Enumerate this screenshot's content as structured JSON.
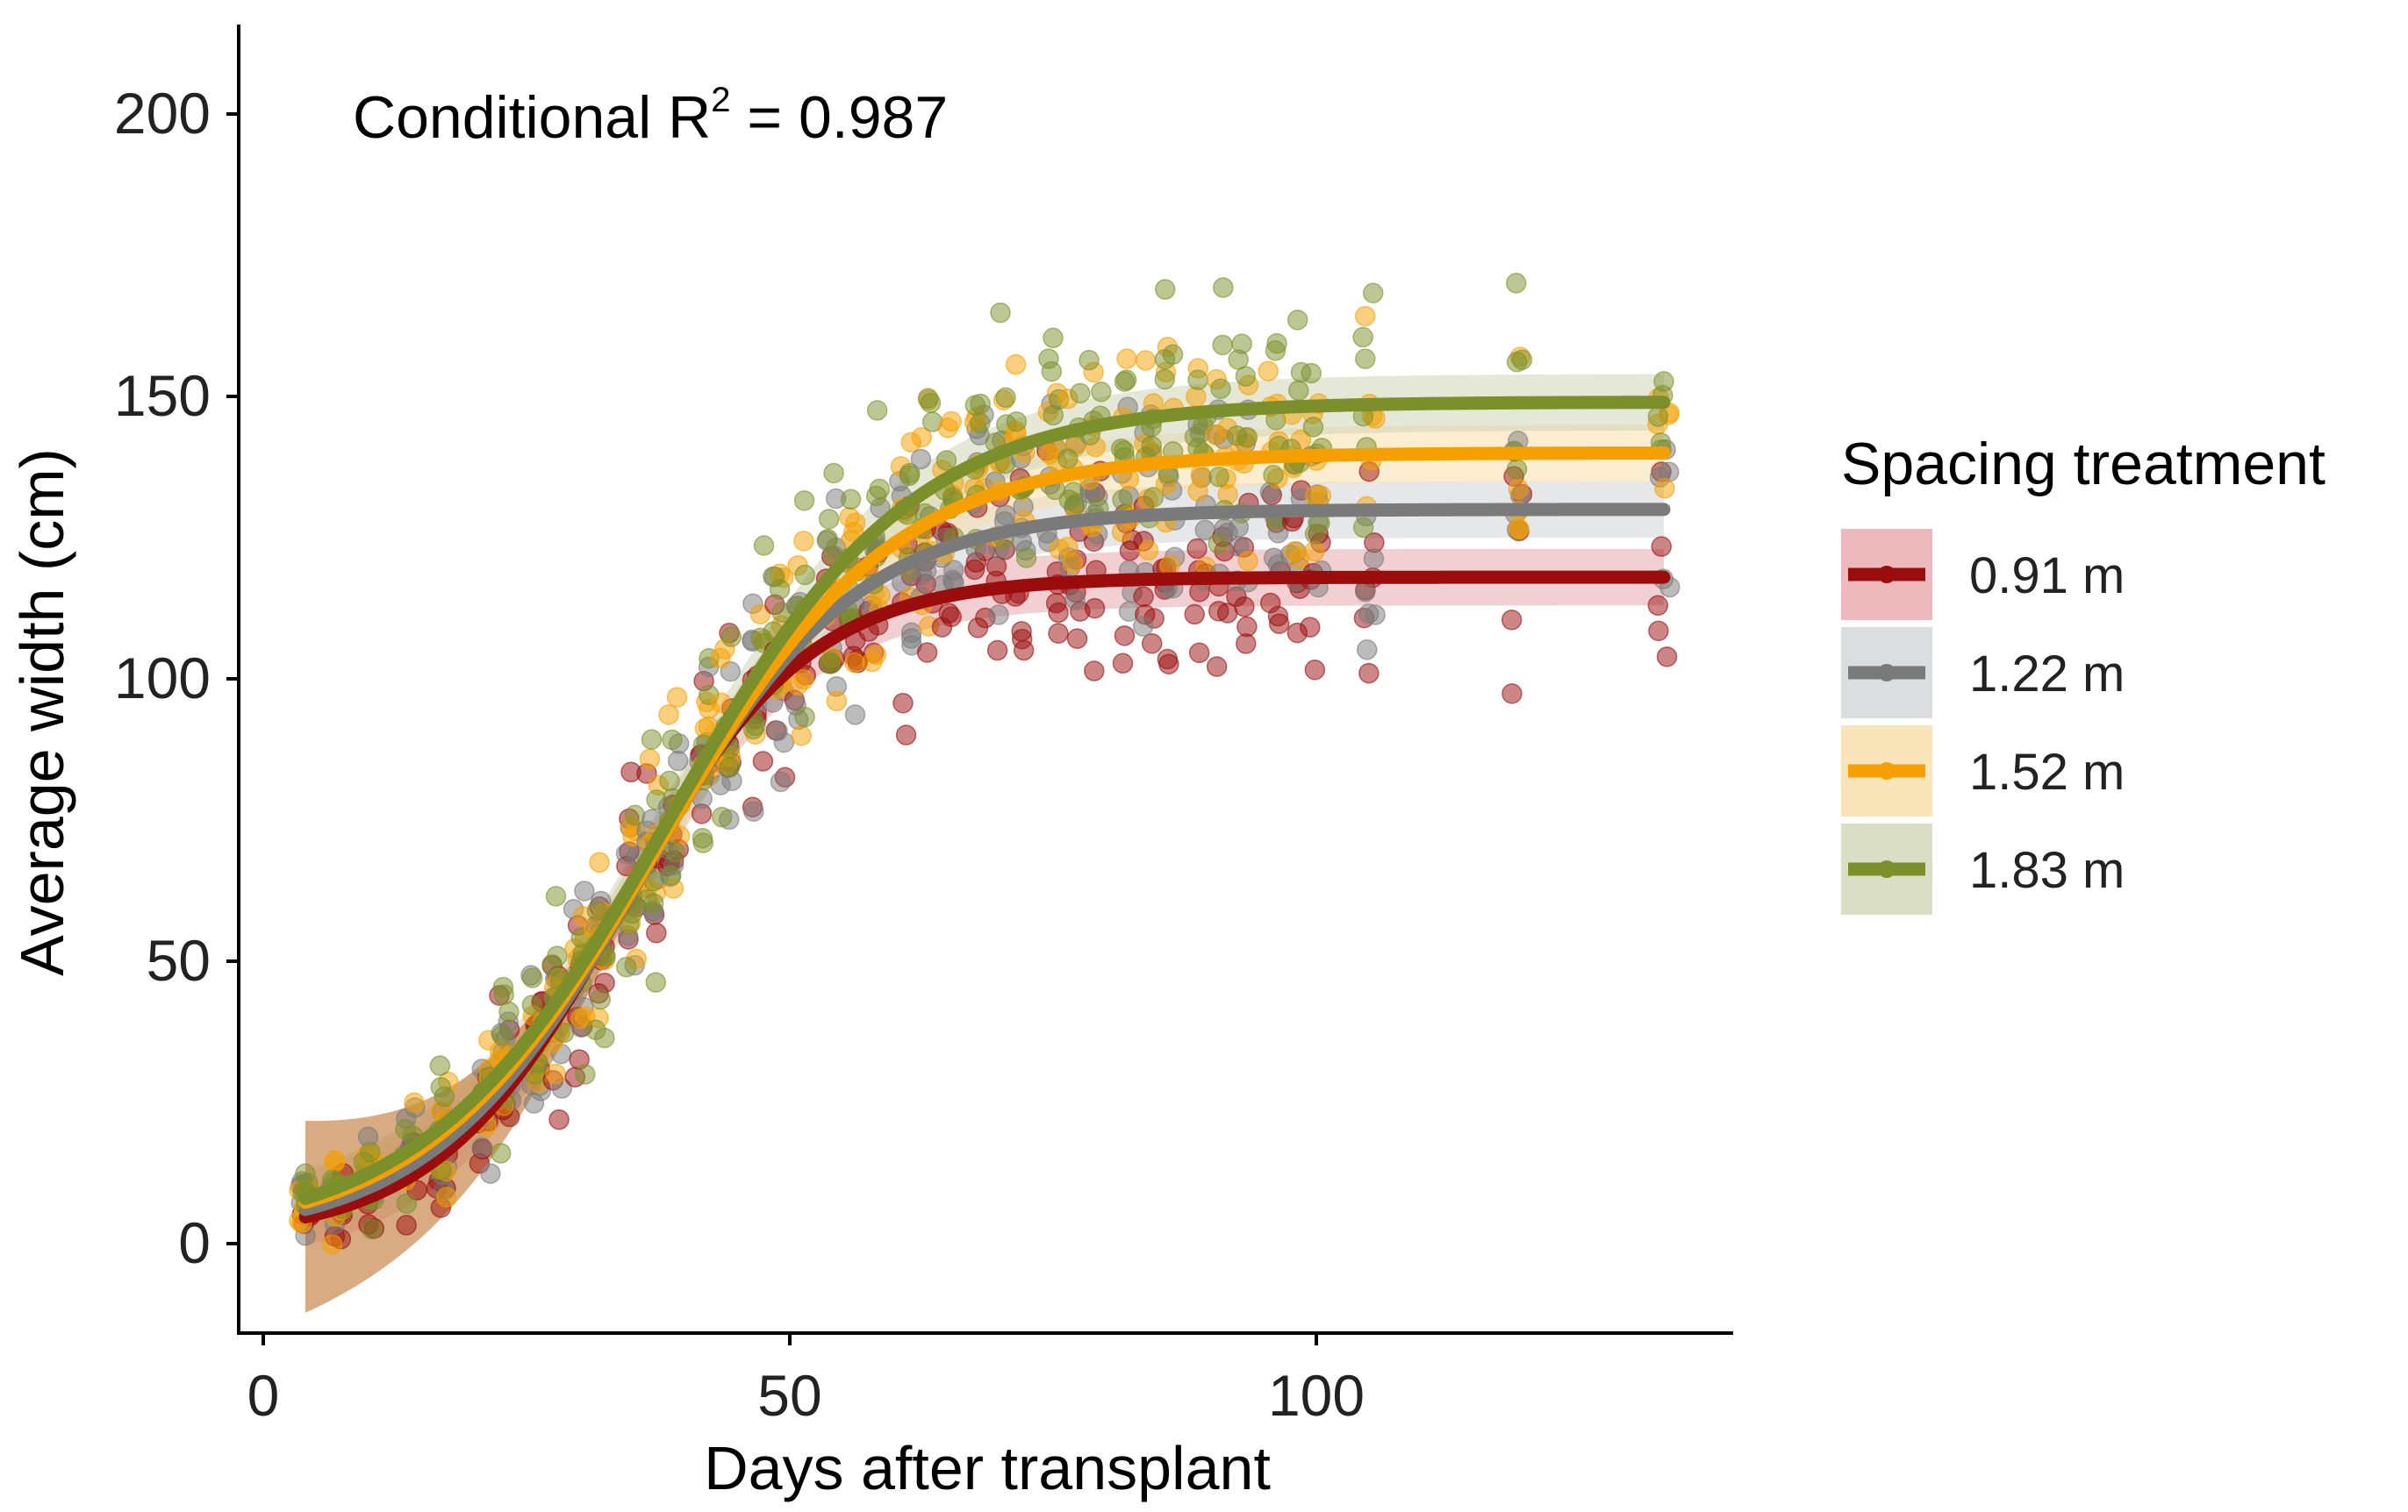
{
  "chart_data": {
    "type": "scatter",
    "title": "",
    "xlabel": "Days after transplant",
    "ylabel": "Average width (cm)",
    "xlim": [
      -2,
      138
    ],
    "ylim": [
      -16,
      215
    ],
    "xticks": [
      0,
      50,
      100
    ],
    "yticks": [
      0,
      50,
      100,
      150,
      200
    ],
    "grid": false,
    "annotation": {
      "prefix": "Conditional R",
      "superscript": "2",
      "suffix": " = 0.987"
    },
    "legend": {
      "title": "Spacing treatment",
      "position": "right"
    },
    "x_sample_days": [
      4,
      7,
      10,
      14,
      17,
      21,
      23,
      26,
      28,
      30,
      32,
      35,
      37,
      39,
      42,
      44,
      47,
      49,
      51,
      54,
      56,
      58,
      61,
      63,
      65,
      68,
      70,
      72,
      75,
      77,
      79,
      82,
      84,
      86,
      89,
      91,
      93,
      96,
      98,
      100,
      105,
      119,
      133
    ],
    "series": [
      {
        "name": "0.91 m",
        "color": "#9b0d0d",
        "band_color": "#e8a8ad",
        "fit": {
          "asymptote": 118,
          "midpoint": 34,
          "scale": 8.8,
          "floor": 1
        },
        "ci_halfwidth": 5,
        "point_noise": 13
      },
      {
        "name": "1.22 m",
        "color": "#7a7a7a",
        "band_color": "#d2d4d6",
        "fit": {
          "asymptote": 130,
          "midpoint": 36,
          "scale": 10,
          "floor": 1
        },
        "ci_halfwidth": 5,
        "point_noise": 14
      },
      {
        "name": "1.52 m",
        "color": "#f5a000",
        "band_color": "#f7dfa8",
        "fit": {
          "asymptote": 140,
          "midpoint": 37.5,
          "scale": 11,
          "floor": 1
        },
        "ci_halfwidth": 5,
        "point_noise": 14
      },
      {
        "name": "1.83 m",
        "color": "#7b8f2a",
        "band_color": "#cfd6b6",
        "fit": {
          "asymptote": 149,
          "midpoint": 38.5,
          "scale": 11.5,
          "floor": 1
        },
        "ci_halfwidth": 5,
        "point_noise": 15
      }
    ],
    "early_ci": {
      "color": "#c8884e",
      "upto_day": 35
    }
  }
}
